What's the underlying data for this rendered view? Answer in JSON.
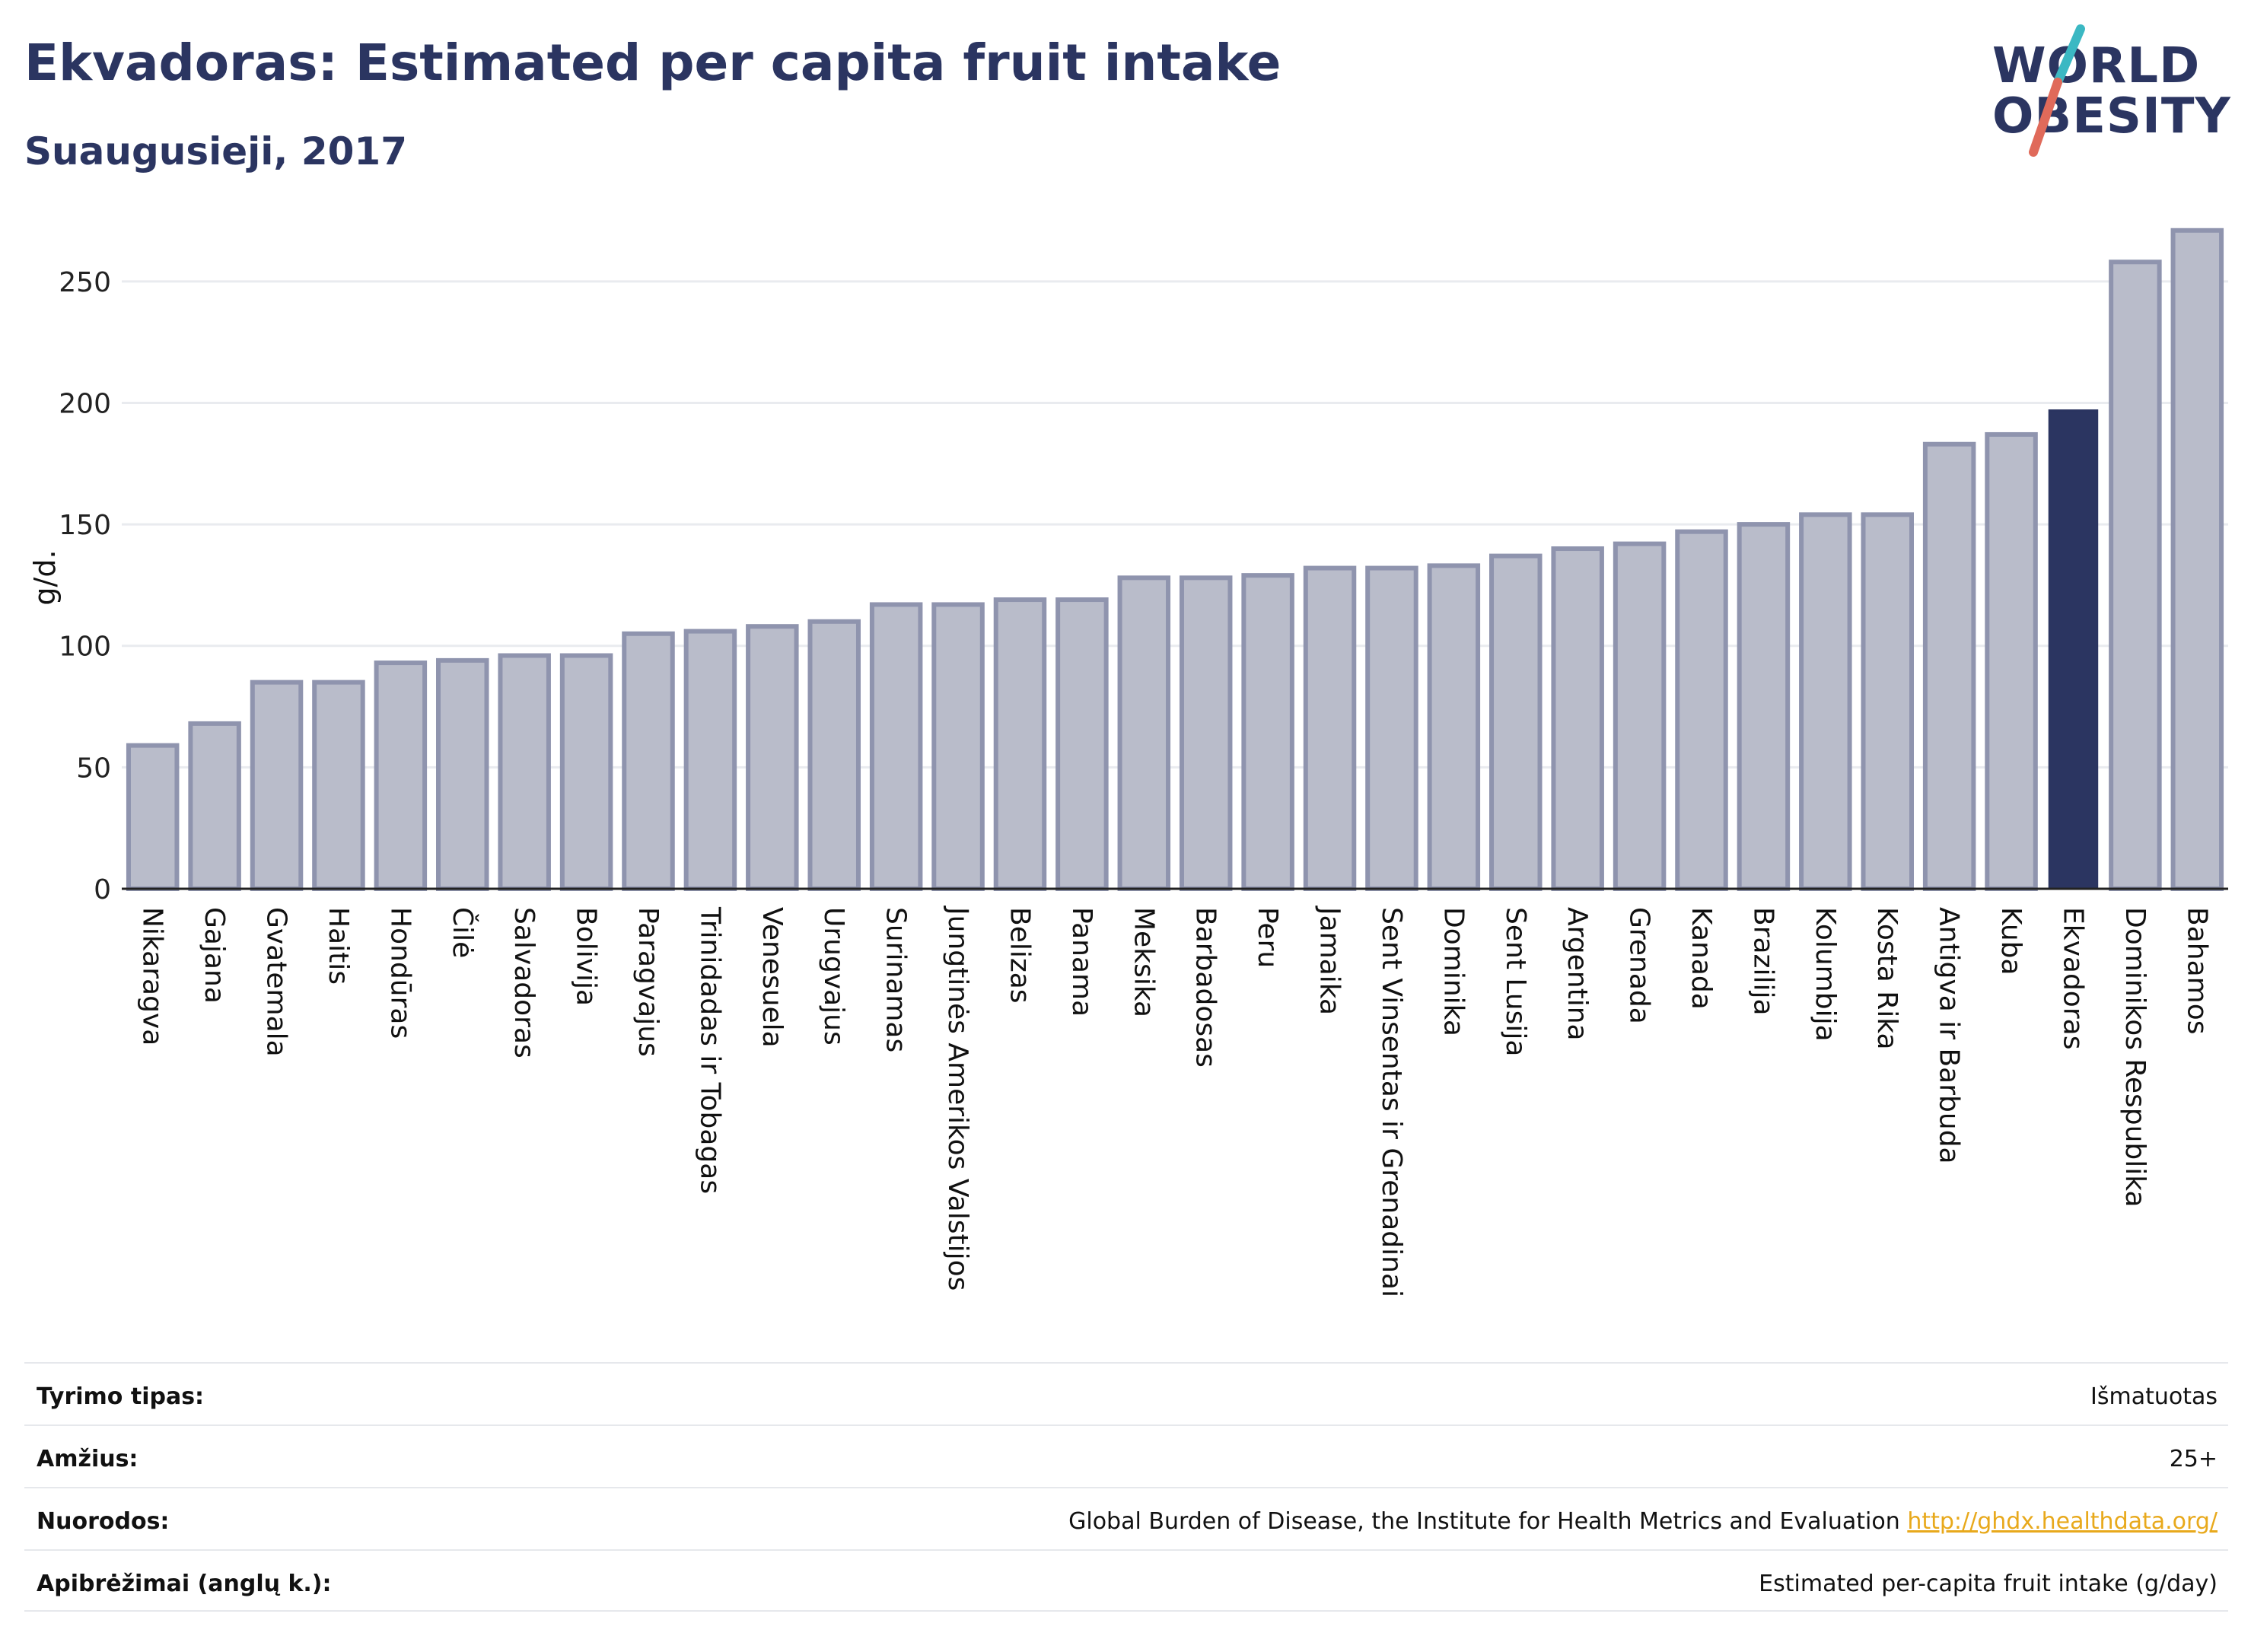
{
  "header": {
    "title": "Ekvadoras: Estimated per capita fruit intake",
    "subtitle": "Suaugusieji, 2017",
    "logo_line1": "WORLD",
    "logo_line2": "OBESITY"
  },
  "colors": {
    "bar": "#b9bcca",
    "bar_stroke": "#8f94ae",
    "highlight": "#2b3561",
    "grid": "#e9ebef",
    "logo_teal": "#3bb8c3",
    "logo_red": "#e06a5a"
  },
  "chart_data": {
    "type": "bar",
    "title": "Ekvadoras: Estimated per capita fruit intake",
    "subtitle": "Suaugusieji, 2017",
    "ylabel": "g/d.",
    "xlabel": "",
    "ylim": [
      0,
      275
    ],
    "yticks": [
      0,
      50,
      100,
      150,
      200,
      250
    ],
    "grid": true,
    "highlight": "Ekvadoras",
    "categories": [
      "Nikaragva",
      "Gajana",
      "Gvatemala",
      "Haitis",
      "Hondūras",
      "Čilė",
      "Salvadoras",
      "Bolivija",
      "Paragvajus",
      "Trinidadas ir Tobagas",
      "Venesuela",
      "Urugvajus",
      "Surinamas",
      "Jungtinės Amerikos Valstijos",
      "Belizas",
      "Panama",
      "Meksika",
      "Barbadosas",
      "Peru",
      "Jamaika",
      "Sent Vinsentas ir Grenadinai",
      "Dominika",
      "Sent Lusija",
      "Argentina",
      "Grenada",
      "Kanada",
      "Brazilija",
      "Kolumbija",
      "Kosta Rika",
      "Antigva ir Barbuda",
      "Kuba",
      "Ekvadoras",
      "Dominikos Respublika",
      "Bahamos"
    ],
    "values": [
      59,
      68,
      85,
      85,
      93,
      94,
      96,
      96,
      105,
      106,
      108,
      110,
      117,
      117,
      119,
      119,
      128,
      128,
      129,
      132,
      132,
      133,
      137,
      140,
      142,
      147,
      150,
      154,
      154,
      183,
      187,
      197,
      258,
      271
    ]
  },
  "meta": [
    {
      "key": "Tyrimo tipas:",
      "value": "Išmatuotas"
    },
    {
      "key": "Amžius:",
      "value": "25+"
    },
    {
      "key": "Nuorodos:",
      "value": "Global Burden of Disease, the Institute for Health Metrics and Evaluation",
      "link": "http://ghdx.healthdata.org/"
    },
    {
      "key": "Apibrėžimai (anglų k.):",
      "value": "Estimated per-capita fruit intake (g/day)"
    }
  ]
}
